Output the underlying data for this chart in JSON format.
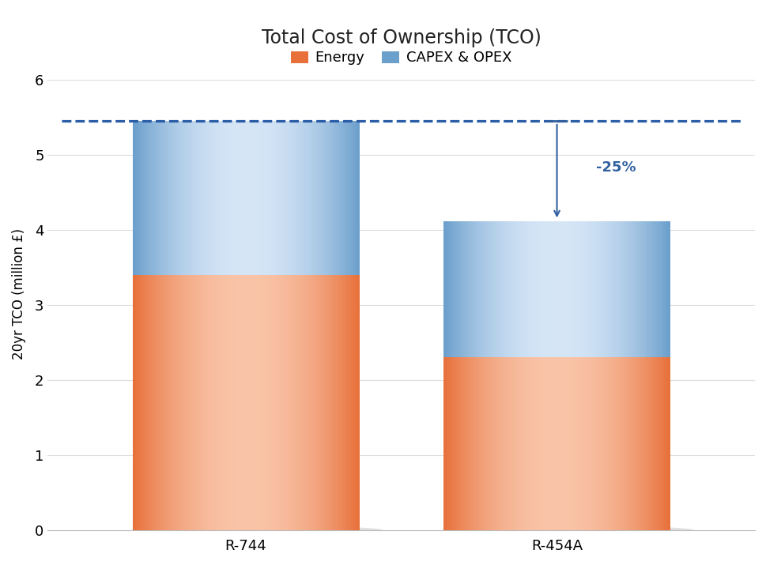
{
  "categories": [
    "R-744",
    "R-454A"
  ],
  "energy_values": [
    3.4,
    2.3
  ],
  "capex_values": [
    2.05,
    1.8
  ],
  "total_values": [
    5.45,
    4.1
  ],
  "dashed_line_y": 5.45,
  "annotation_text": "-25%",
  "title": "Total Cost of Ownership (TCO)",
  "ylabel": "20yr TCO (million £)",
  "ylim": [
    0,
    6.3
  ],
  "yticks": [
    0,
    1,
    2,
    3,
    4,
    5,
    6
  ],
  "energy_color_center": "#F9C4A8",
  "energy_color_edge": "#E8703A",
  "capex_color_center": "#D6E6F7",
  "capex_color_edge": "#6B9FCC",
  "dashed_line_color": "#2B5EA7",
  "arrow_color": "#3060A0",
  "bar_width": 0.32,
  "x_positions": [
    0.28,
    0.72
  ],
  "xlim": [
    0.0,
    1.0
  ],
  "background_color": "#FFFFFF",
  "shadow_color": "#AAAAAA",
  "legend_energy_label": "Energy",
  "legend_capex_label": "CAPEX & OPEX",
  "title_fontsize": 17,
  "label_fontsize": 12,
  "tick_fontsize": 13,
  "annotation_fontsize": 13,
  "grid_color": "#DDDDDD"
}
